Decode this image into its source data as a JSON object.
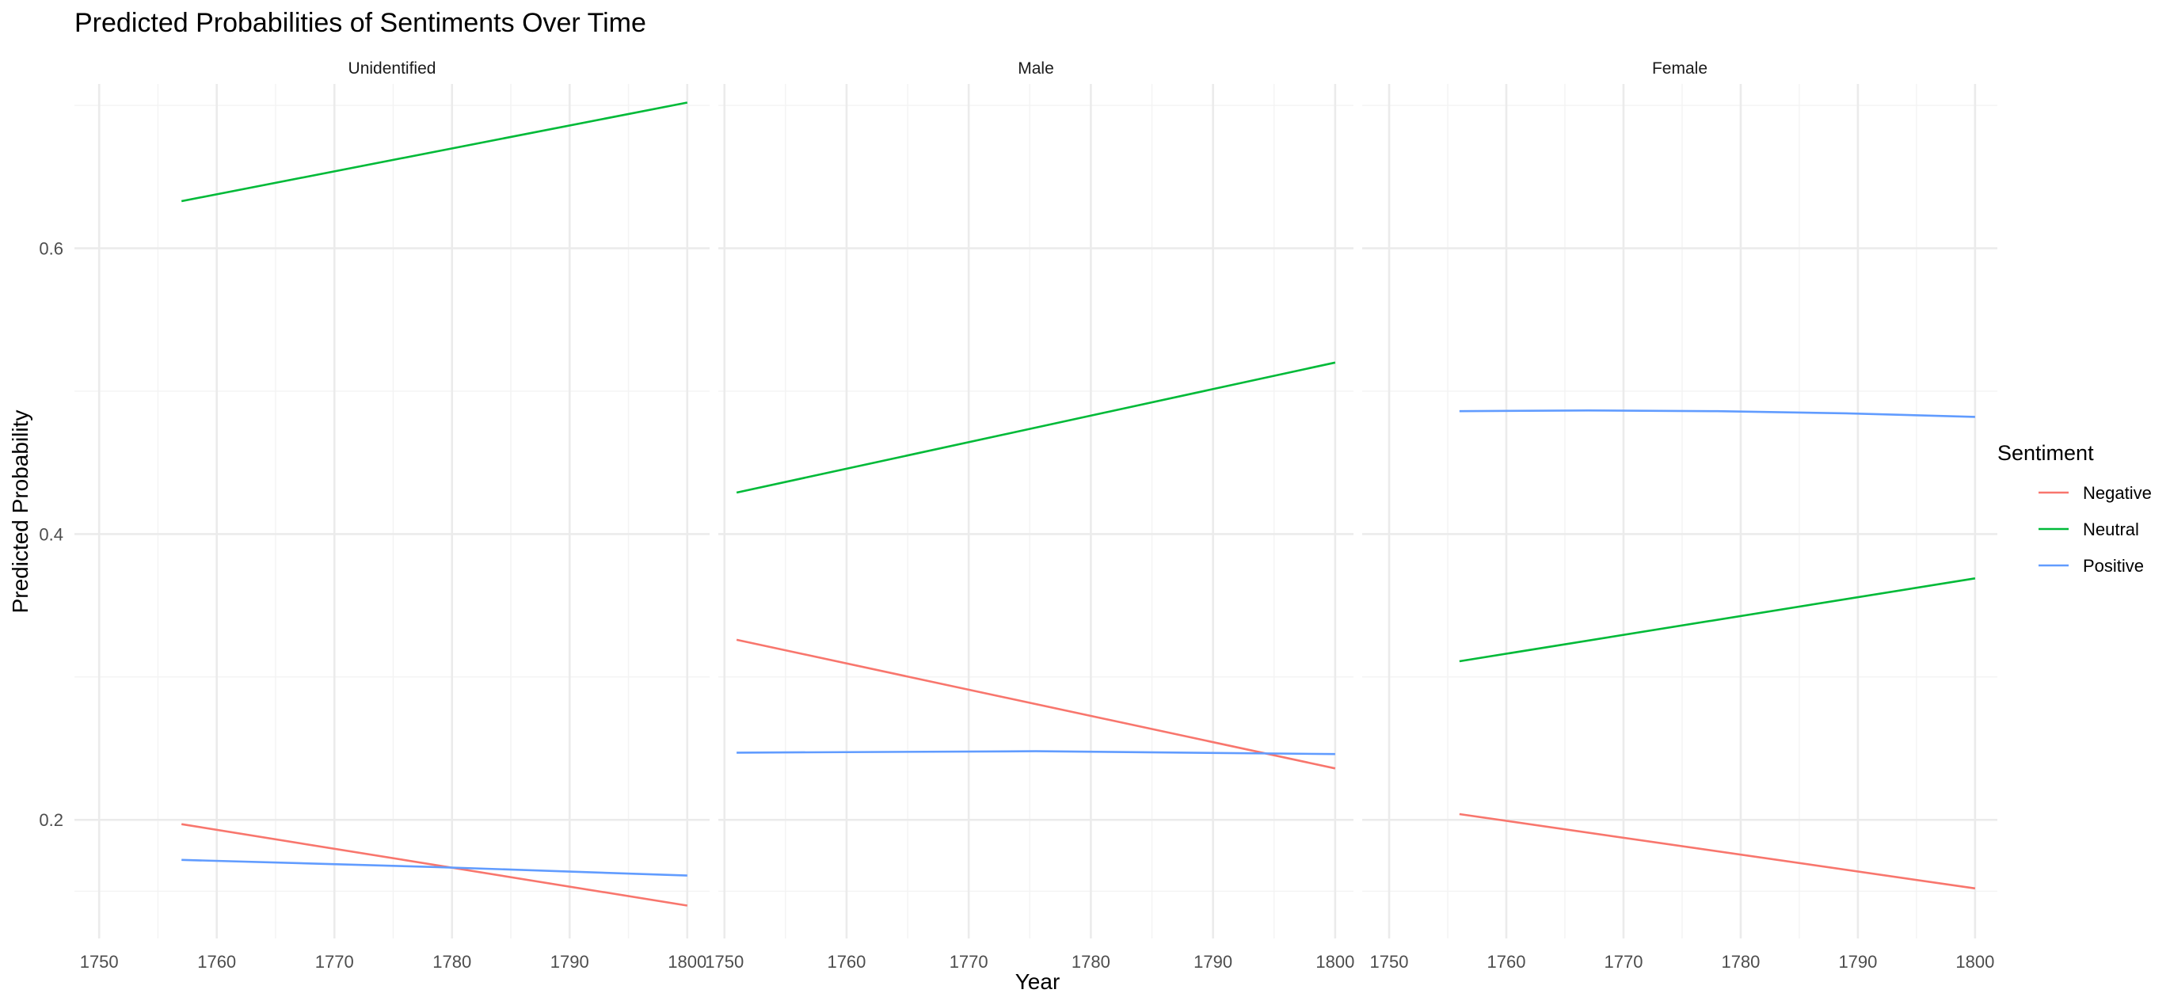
{
  "chart_data": {
    "type": "line",
    "title": "Predicted Probabilities of Sentiments Over Time",
    "xlabel": "Year",
    "ylabel": "Predicted Probability",
    "ylim": [
      0.117,
      0.715
    ],
    "y_ticks": [
      0.2,
      0.4,
      0.6
    ],
    "y_tick_labels": [
      "0.2",
      "0.4",
      "0.6"
    ],
    "grid": true,
    "legend": {
      "title": "Sentiment",
      "position": "right",
      "entries": [
        {
          "name": "Negative",
          "color": "#F8766D"
        },
        {
          "name": "Neutral",
          "color": "#00BA38"
        },
        {
          "name": "Positive",
          "color": "#619CFF"
        }
      ]
    },
    "panels": [
      {
        "label": "Unidentified",
        "xlim": [
          1747.9,
          1801.9
        ],
        "x_ticks": [
          1750,
          1760,
          1770,
          1780,
          1790,
          1800
        ],
        "x_tick_labels": [
          "1750",
          "1760",
          "1770",
          "1780",
          "1790",
          "1800"
        ],
        "series": [
          {
            "name": "Negative",
            "x": [
              1757,
              1800
            ],
            "values": [
              0.197,
              0.14
            ]
          },
          {
            "name": "Neutral",
            "x": [
              1757,
              1800
            ],
            "values": [
              0.633,
              0.702
            ]
          },
          {
            "name": "Positive",
            "x": [
              1757,
              1778.5,
              1800
            ],
            "values": [
              0.172,
              0.167,
              0.161
            ]
          }
        ]
      },
      {
        "label": "Male",
        "xlim": [
          1749.5,
          1801.5
        ],
        "x_ticks": [
          1750,
          1760,
          1770,
          1780,
          1790,
          1800
        ],
        "x_tick_labels": [
          "1750",
          "1760",
          "1770",
          "1780",
          "1790",
          "1800"
        ],
        "series": [
          {
            "name": "Negative",
            "x": [
              1751,
              1800
            ],
            "values": [
              0.326,
              0.236
            ]
          },
          {
            "name": "Neutral",
            "x": [
              1751,
              1800
            ],
            "values": [
              0.429,
              0.52
            ]
          },
          {
            "name": "Positive",
            "x": [
              1751,
              1775.5,
              1800
            ],
            "values": [
              0.247,
              0.248,
              0.246
            ]
          }
        ]
      },
      {
        "label": "Female",
        "xlim": [
          1747.7,
          1801.9
        ],
        "x_ticks": [
          1750,
          1760,
          1770,
          1780,
          1790,
          1800
        ],
        "x_tick_labels": [
          "1750",
          "1760",
          "1770",
          "1780",
          "1790",
          "1800"
        ],
        "series": [
          {
            "name": "Negative",
            "x": [
              1756,
              1800
            ],
            "values": [
              0.204,
              0.152
            ]
          },
          {
            "name": "Neutral",
            "x": [
              1756,
              1800
            ],
            "values": [
              0.311,
              0.369
            ]
          },
          {
            "name": "Positive",
            "x": [
              1756,
              1767,
              1778,
              1789,
              1800
            ],
            "values": [
              0.486,
              0.4865,
              0.486,
              0.4845,
              0.482
            ]
          }
        ]
      }
    ]
  }
}
